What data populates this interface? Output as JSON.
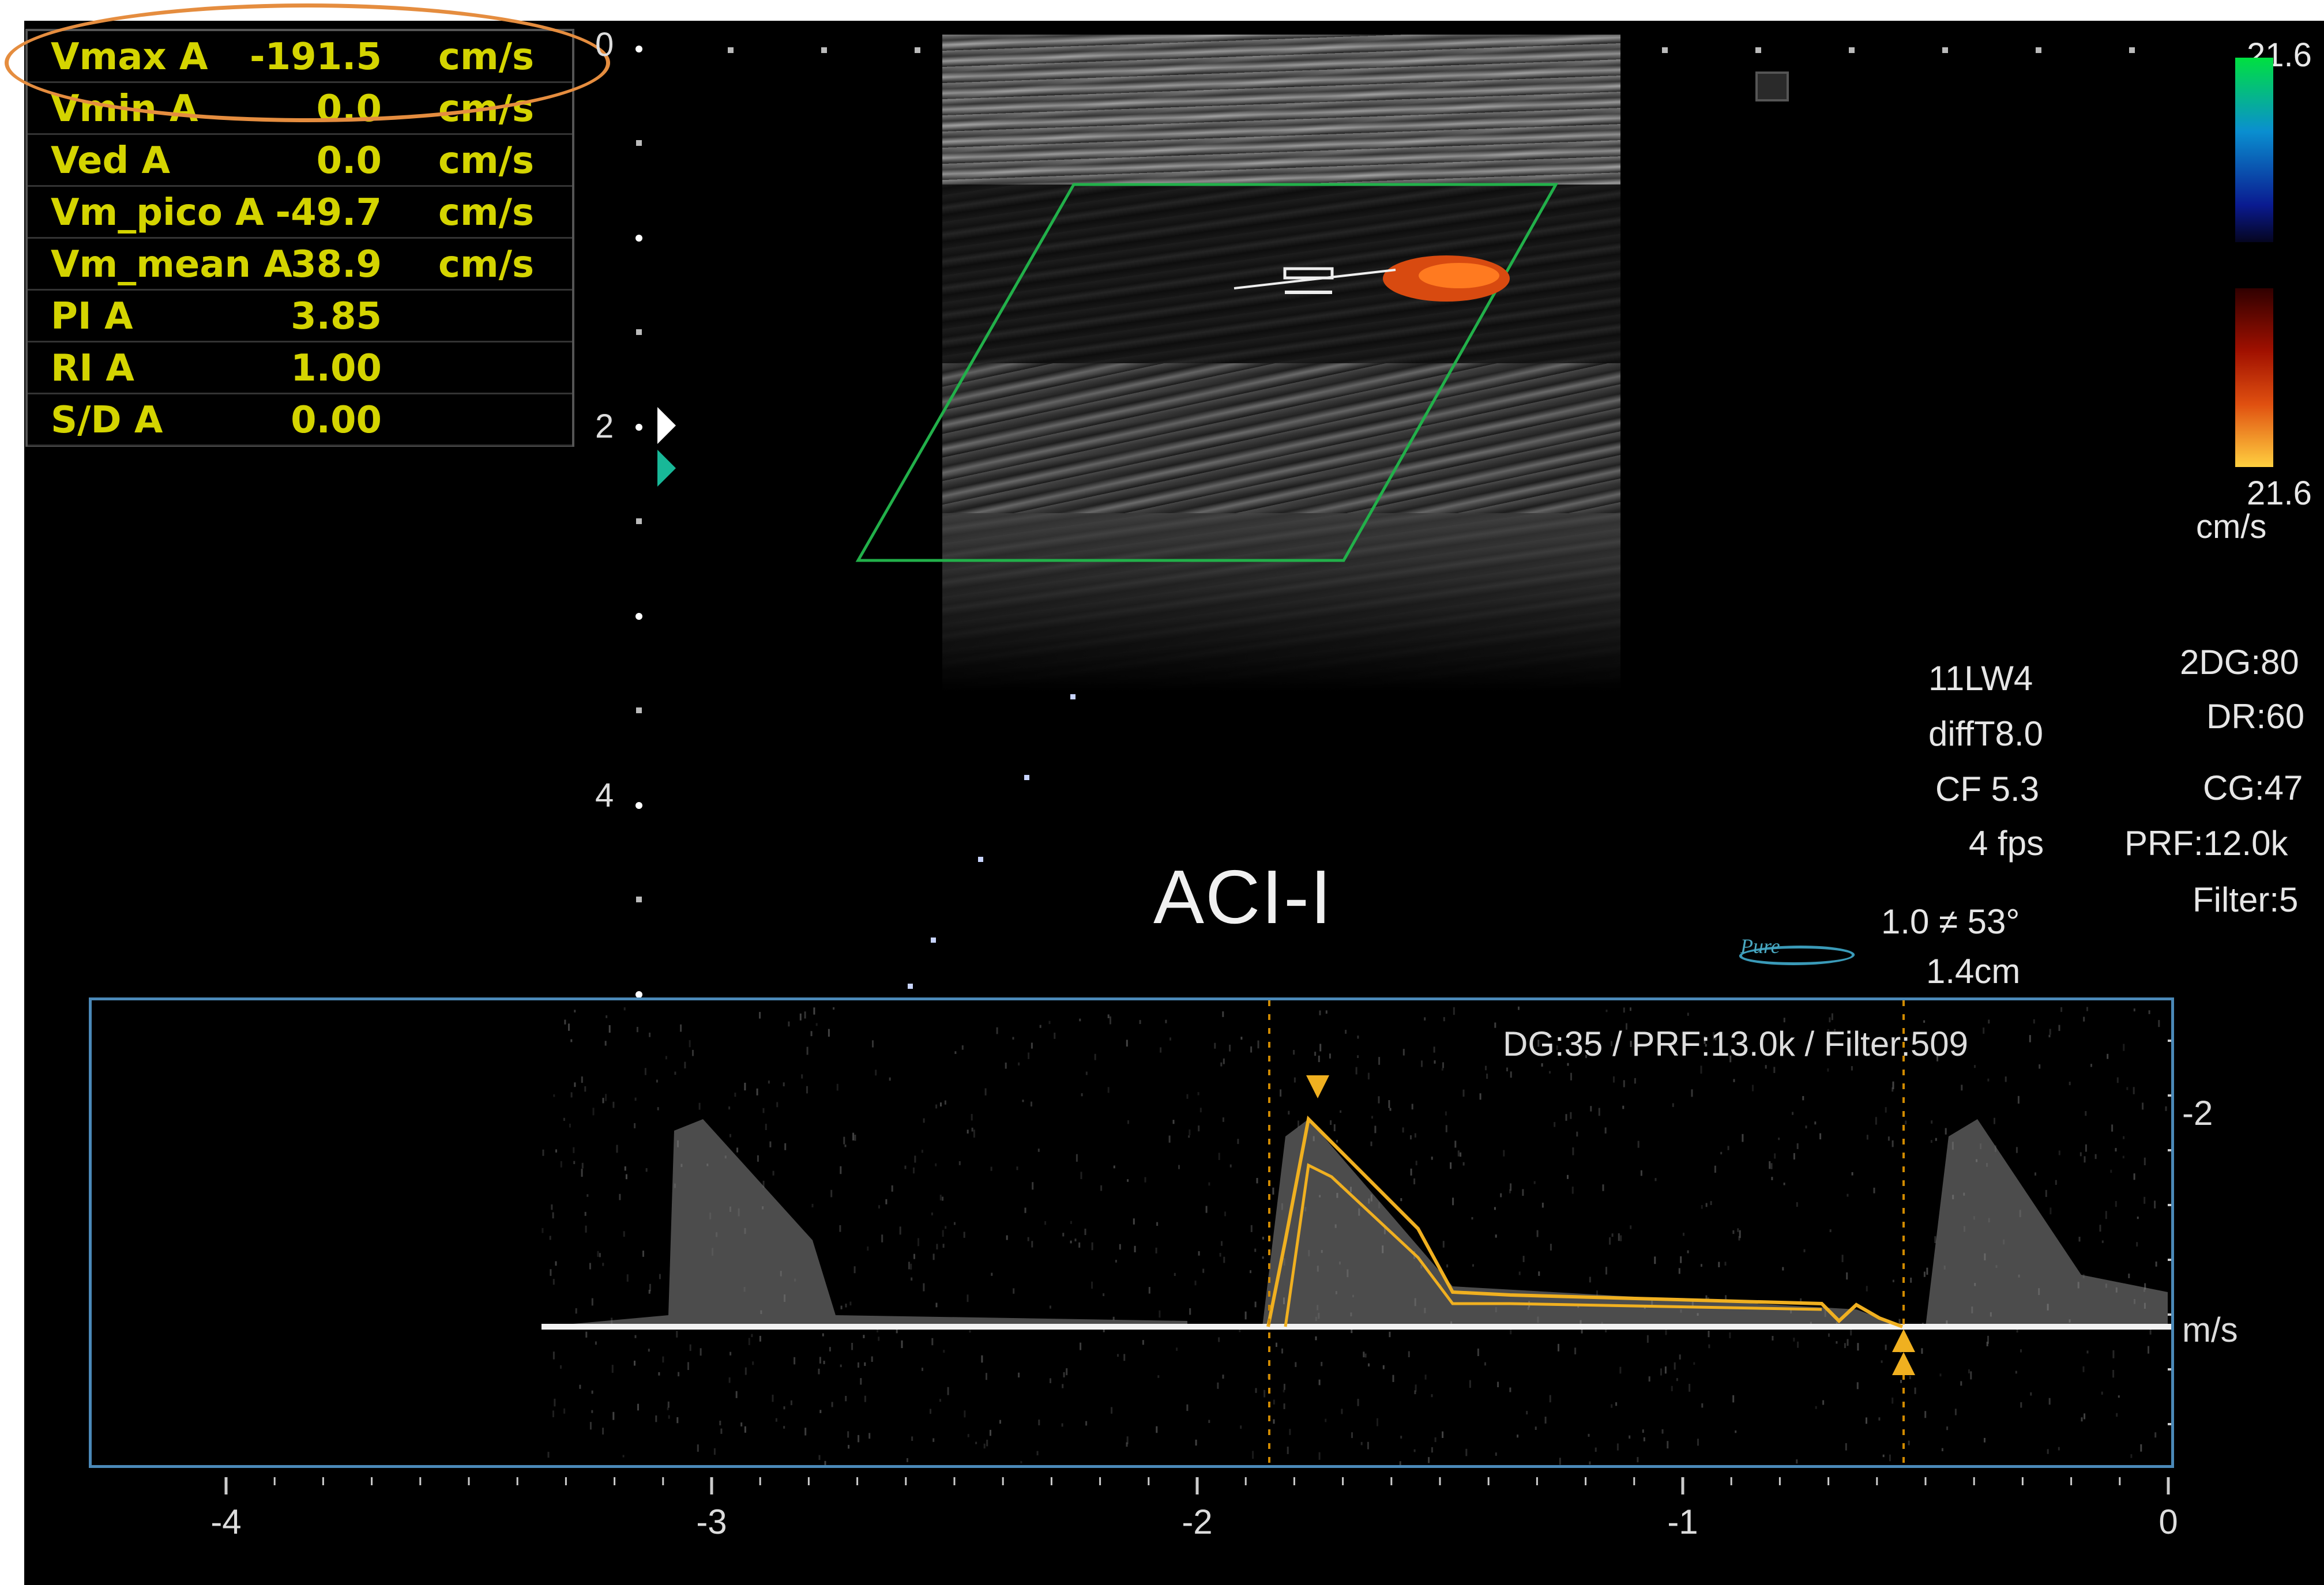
{
  "measurements": [
    {
      "name": "Vmax  A",
      "value": "-191.5",
      "unit": "cm/s"
    },
    {
      "name": "Vmin  A",
      "value": "0.0",
      "unit": "cm/s"
    },
    {
      "name": "Ved  A",
      "value": "0.0",
      "unit": "cm/s"
    },
    {
      "name": "Vm_pico  A",
      "value": "-49.7",
      "unit": "cm/s"
    },
    {
      "name": "Vm_mean  A",
      "value": "38.9",
      "unit": "cm/s"
    },
    {
      "name": "PI  A",
      "value": "3.85",
      "unit": ""
    },
    {
      "name": "RI  A",
      "value": "1.00",
      "unit": ""
    },
    {
      "name": "S/D  A",
      "value": "0.00",
      "unit": ""
    }
  ],
  "depth_scale": {
    "labels": [
      "0",
      "2",
      "4"
    ]
  },
  "color_scale": {
    "top": "21.6",
    "bottom": "21.6",
    "unit": "cm/s"
  },
  "probe_params": {
    "probe": "11LW4",
    "mode": "diffT8.0",
    "cf": "CF 5.3",
    "fps": "4 fps"
  },
  "system_params": {
    "dg2d": "2DG:80",
    "dr": "DR:60",
    "cg": "CG:47",
    "prf": "PRF:12.0k",
    "filter": "Filter:5"
  },
  "sample": {
    "angle": "1.0 ≠ 53°",
    "depth": "1.4cm"
  },
  "logo_text": "Pure",
  "label": "ACI-I",
  "doppler": {
    "params": "DG:35 /    PRF:13.0k / Filter:509",
    "velocity_labels": [
      "-2",
      "m/s"
    ],
    "time_labels": [
      "-4",
      "-3",
      "-2",
      "-1",
      "0"
    ]
  },
  "colors": {
    "measure_text": "#d4d400",
    "highlight": "#e58d3f",
    "roi": "#22b04a",
    "trace": "#f0b020",
    "panel_border": "#4b89b8"
  },
  "icons": [
    "focus-marker-icon",
    "caliper-icon",
    "trace-marker-icon",
    "pure-logo-icon"
  ]
}
